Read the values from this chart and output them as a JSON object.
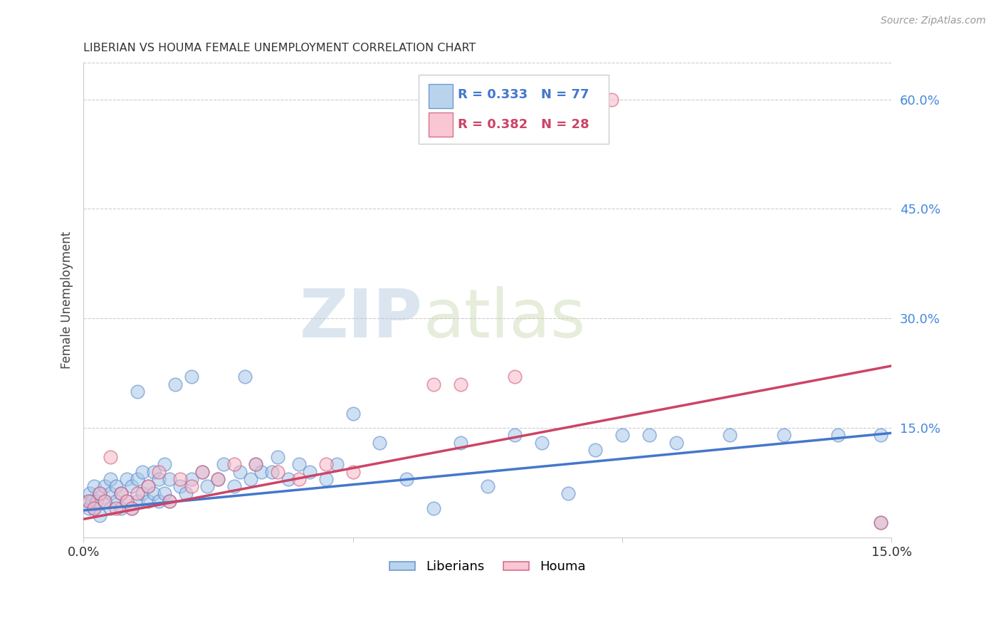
{
  "title": "LIBERIAN VS HOUMA FEMALE UNEMPLOYMENT CORRELATION CHART",
  "source": "Source: ZipAtlas.com",
  "ylabel": "Female Unemployment",
  "xlim": [
    0.0,
    0.15
  ],
  "ylim": [
    0.0,
    0.65
  ],
  "grid_color": "#cccccc",
  "background_color": "#ffffff",
  "blue_fill": "#a8c8e8",
  "blue_edge": "#5588cc",
  "pink_fill": "#f8b8c8",
  "pink_edge": "#cc5577",
  "blue_line_color": "#4477cc",
  "pink_line_color": "#cc4466",
  "blue_R": 0.333,
  "blue_N": 77,
  "pink_R": 0.382,
  "pink_N": 28,
  "watermark_zip": "ZIP",
  "watermark_atlas": "atlas",
  "legend_label_blue": "Liberians",
  "legend_label_pink": "Houma",
  "blue_x": [
    0.0008,
    0.001,
    0.0012,
    0.0015,
    0.002,
    0.002,
    0.0025,
    0.003,
    0.003,
    0.004,
    0.004,
    0.005,
    0.005,
    0.005,
    0.006,
    0.006,
    0.007,
    0.007,
    0.008,
    0.008,
    0.009,
    0.009,
    0.01,
    0.01,
    0.01,
    0.011,
    0.011,
    0.012,
    0.012,
    0.013,
    0.013,
    0.014,
    0.014,
    0.015,
    0.015,
    0.016,
    0.016,
    0.017,
    0.018,
    0.019,
    0.02,
    0.02,
    0.022,
    0.023,
    0.025,
    0.026,
    0.028,
    0.029,
    0.03,
    0.031,
    0.032,
    0.033,
    0.035,
    0.036,
    0.038,
    0.04,
    0.042,
    0.045,
    0.047,
    0.05,
    0.055,
    0.06,
    0.065,
    0.07,
    0.075,
    0.08,
    0.085,
    0.09,
    0.095,
    0.1,
    0.105,
    0.11,
    0.12,
    0.13,
    0.14,
    0.148,
    0.148
  ],
  "blue_y": [
    0.05,
    0.04,
    0.06,
    0.05,
    0.04,
    0.07,
    0.05,
    0.06,
    0.03,
    0.05,
    0.07,
    0.04,
    0.06,
    0.08,
    0.05,
    0.07,
    0.04,
    0.06,
    0.05,
    0.08,
    0.04,
    0.07,
    0.05,
    0.08,
    0.2,
    0.06,
    0.09,
    0.05,
    0.07,
    0.06,
    0.09,
    0.05,
    0.08,
    0.06,
    0.1,
    0.05,
    0.08,
    0.21,
    0.07,
    0.06,
    0.08,
    0.22,
    0.09,
    0.07,
    0.08,
    0.1,
    0.07,
    0.09,
    0.22,
    0.08,
    0.1,
    0.09,
    0.09,
    0.11,
    0.08,
    0.1,
    0.09,
    0.08,
    0.1,
    0.17,
    0.13,
    0.08,
    0.04,
    0.13,
    0.07,
    0.14,
    0.13,
    0.06,
    0.12,
    0.14,
    0.14,
    0.13,
    0.14,
    0.14,
    0.14,
    0.02,
    0.14
  ],
  "pink_x": [
    0.001,
    0.002,
    0.003,
    0.004,
    0.005,
    0.006,
    0.007,
    0.008,
    0.009,
    0.01,
    0.012,
    0.014,
    0.016,
    0.018,
    0.02,
    0.022,
    0.025,
    0.028,
    0.032,
    0.036,
    0.04,
    0.045,
    0.05,
    0.065,
    0.07,
    0.08,
    0.098,
    0.148
  ],
  "pink_y": [
    0.05,
    0.04,
    0.06,
    0.05,
    0.11,
    0.04,
    0.06,
    0.05,
    0.04,
    0.06,
    0.07,
    0.09,
    0.05,
    0.08,
    0.07,
    0.09,
    0.08,
    0.1,
    0.1,
    0.09,
    0.08,
    0.1,
    0.09,
    0.21,
    0.21,
    0.22,
    0.6,
    0.02
  ],
  "blue_line_x0": 0.0,
  "blue_line_y0": 0.037,
  "blue_line_x1": 0.15,
  "blue_line_y1": 0.143,
  "pink_line_x0": 0.0,
  "pink_line_y0": 0.025,
  "pink_line_x1": 0.15,
  "pink_line_y1": 0.235
}
